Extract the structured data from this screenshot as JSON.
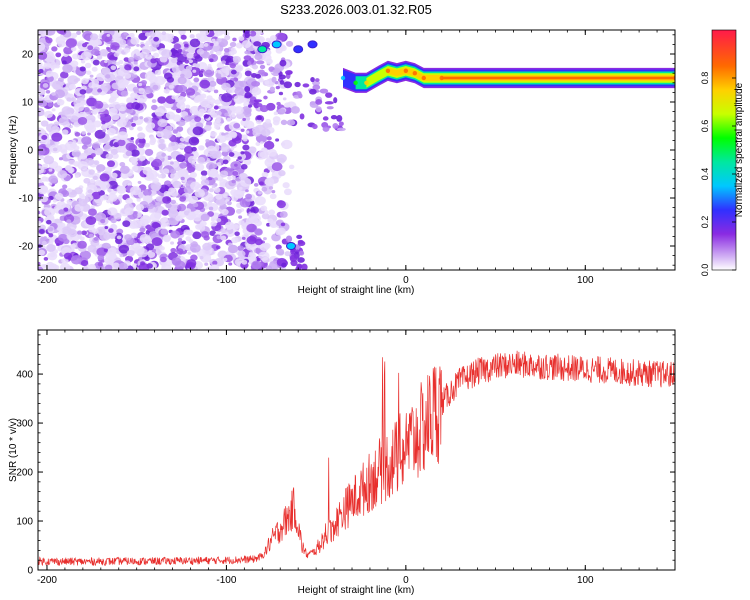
{
  "title": "S233.2026.003.01.32.R05",
  "chart_data": [
    {
      "type": "heatmap",
      "xlabel": "Height of straight line (km)",
      "ylabel": "Frequency (Hz)",
      "xlim": [
        -205,
        150
      ],
      "ylim": [
        -25,
        25
      ],
      "xticks": [
        -200,
        -100,
        0,
        100
      ],
      "yticks": [
        -20,
        -10,
        0,
        10,
        20
      ],
      "colorbar": {
        "label": "Normalized spectral amplitude",
        "range": [
          0,
          1
        ],
        "ticks": [
          0.0,
          0.2,
          0.4,
          0.6,
          0.8
        ]
      },
      "signal_ridge": [
        {
          "x": -35,
          "y": 15,
          "amp": 0.35
        },
        {
          "x": -28,
          "y": 14,
          "amp": 0.55
        },
        {
          "x": -22,
          "y": 14,
          "amp": 0.75
        },
        {
          "x": -15,
          "y": 15.5,
          "amp": 0.65
        },
        {
          "x": -10,
          "y": 16.5,
          "amp": 0.85
        },
        {
          "x": -5,
          "y": 16,
          "amp": 0.8
        },
        {
          "x": 0,
          "y": 16.5,
          "amp": 0.9
        },
        {
          "x": 5,
          "y": 16,
          "amp": 0.85
        },
        {
          "x": 10,
          "y": 15,
          "amp": 0.9
        },
        {
          "x": 20,
          "y": 15,
          "amp": 0.95
        },
        {
          "x": 150,
          "y": 15,
          "amp": 0.95
        }
      ]
    },
    {
      "type": "line",
      "xlabel": "Height of straight line (km)",
      "ylabel": "SNR (10 * v/v)",
      "xlim": [
        -205,
        150
      ],
      "ylim": [
        0,
        490
      ],
      "xticks": [
        -200,
        -100,
        0,
        100
      ],
      "yticks": [
        0,
        100,
        200,
        300,
        400
      ],
      "series": [
        {
          "color": "#e8302e",
          "x": [
            -205,
            -180,
            -160,
            -140,
            -120,
            -100,
            -85,
            -80,
            -75,
            -70,
            -65,
            -62,
            -58,
            -55,
            -50,
            -45,
            -40,
            -35,
            -30,
            -25,
            -20,
            -15,
            -10,
            -5,
            0,
            5,
            10,
            15,
            20,
            25,
            30,
            40,
            50,
            60,
            70,
            80,
            90,
            100,
            110,
            120,
            130,
            140,
            150
          ],
          "y": [
            18,
            17,
            18,
            18,
            19,
            20,
            22,
            28,
            60,
            85,
            110,
            130,
            50,
            30,
            40,
            70,
            90,
            120,
            140,
            160,
            180,
            200,
            215,
            230,
            250,
            270,
            290,
            320,
            340,
            365,
            385,
            405,
            415,
            420,
            418,
            415,
            412,
            410,
            408,
            405,
            402,
            400,
            398
          ]
        }
      ]
    }
  ]
}
